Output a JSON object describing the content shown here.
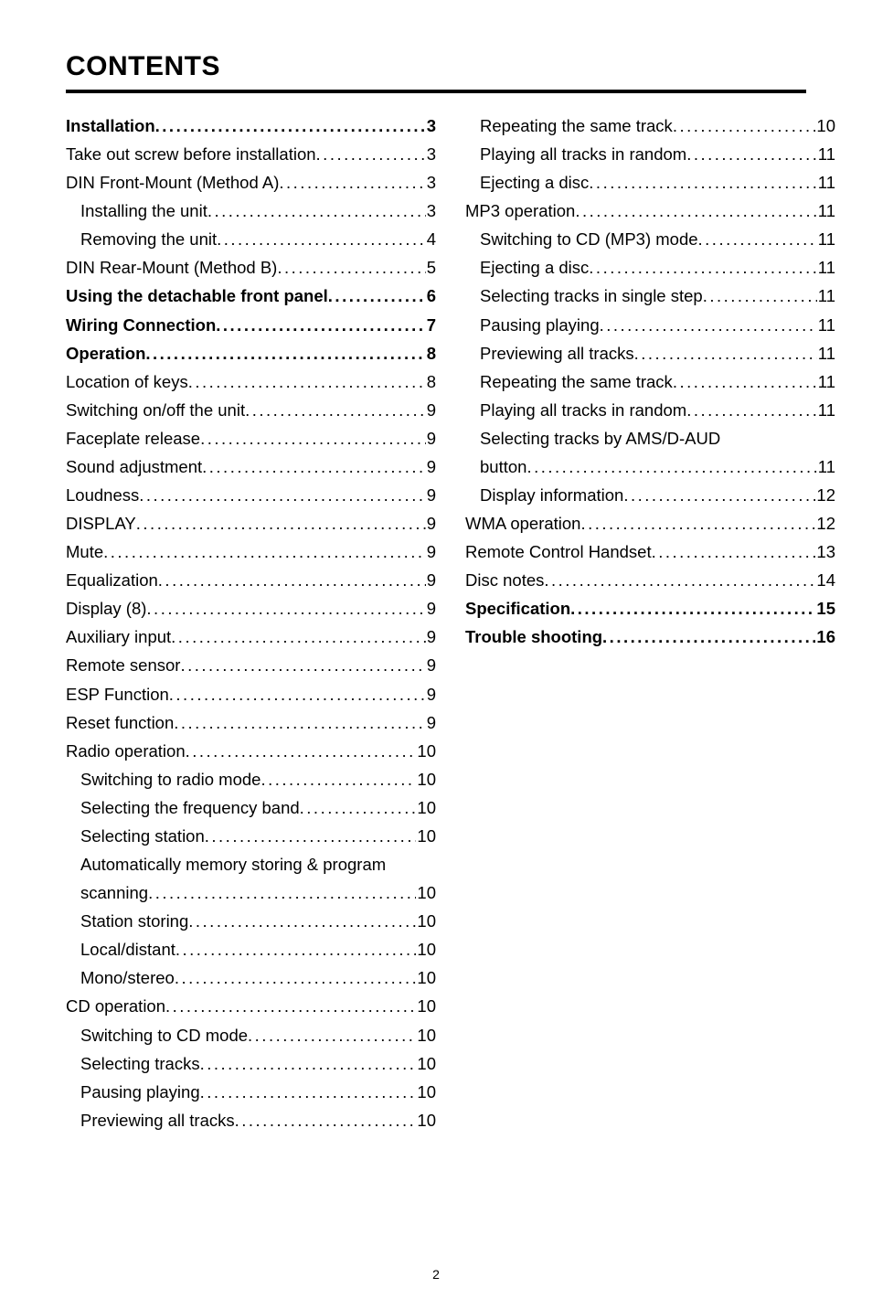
{
  "page_title": "CONTENTS",
  "page_number": "2",
  "columns": {
    "left": [
      {
        "label": "Installation",
        "page": "3",
        "bold": true,
        "indent": 0
      },
      {
        "label": "Take out screw before installation",
        "page": "3",
        "bold": false,
        "indent": 0
      },
      {
        "label": "DIN Front-Mount (Method A)",
        "page": "3",
        "bold": false,
        "indent": 0
      },
      {
        "label": "Installing the unit",
        "page": "3",
        "bold": false,
        "indent": 1
      },
      {
        "label": "Removing the unit",
        "page": "4",
        "bold": false,
        "indent": 1
      },
      {
        "label": "DIN Rear-Mount (Method B)",
        "page": "5",
        "bold": false,
        "indent": 0
      },
      {
        "label": "Using the detachable front panel",
        "page": "6",
        "bold": true,
        "indent": 0
      },
      {
        "label": "Wiring Connection",
        "page": "7",
        "bold": true,
        "indent": 0
      },
      {
        "label": "Operation",
        "page": "8",
        "bold": true,
        "indent": 0
      },
      {
        "label": "Location of keys",
        "page": "8",
        "bold": false,
        "indent": 0
      },
      {
        "label": "Switching on/off the unit",
        "page": "9",
        "bold": false,
        "indent": 0
      },
      {
        "label": "Faceplate release",
        "page": "9",
        "bold": false,
        "indent": 0
      },
      {
        "label": "Sound adjustment",
        "page": "9",
        "bold": false,
        "indent": 0
      },
      {
        "label": "Loudness",
        "page": "9",
        "bold": false,
        "indent": 0
      },
      {
        "label": "DISPLAY",
        "page": "9",
        "bold": false,
        "indent": 0
      },
      {
        "label": "Mute",
        "page": "9",
        "bold": false,
        "indent": 0
      },
      {
        "label": "Equalization",
        "page": "9",
        "bold": false,
        "indent": 0
      },
      {
        "label": "Display (8)",
        "page": "9",
        "bold": false,
        "indent": 0
      },
      {
        "label": "Auxiliary input",
        "page": "9",
        "bold": false,
        "indent": 0
      },
      {
        "label": "Remote sensor",
        "page": "9",
        "bold": false,
        "indent": 0
      },
      {
        "label": "ESP Function",
        "page": "9",
        "bold": false,
        "indent": 0
      },
      {
        "label": "Reset function",
        "page": "9",
        "bold": false,
        "indent": 0
      },
      {
        "label": "Radio operation",
        "page": "10",
        "bold": false,
        "indent": 0
      },
      {
        "label": "Switching to radio mode",
        "page": "10",
        "bold": false,
        "indent": 1
      },
      {
        "label": "Selecting the frequency band",
        "page": "10",
        "bold": false,
        "indent": 1
      },
      {
        "label": "Selecting station",
        "page": "10",
        "bold": false,
        "indent": 1
      },
      {
        "label": "Automatically memory storing & program",
        "page": "",
        "bold": false,
        "indent": 1,
        "no_dots": true
      },
      {
        "label": "scanning",
        "page": "10",
        "bold": false,
        "indent": 1
      },
      {
        "label": "Station storing",
        "page": "10",
        "bold": false,
        "indent": 1
      },
      {
        "label": "Local/distant",
        "page": "10",
        "bold": false,
        "indent": 1
      },
      {
        "label": "Mono/stereo",
        "page": "10",
        "bold": false,
        "indent": 1
      },
      {
        "label": "CD operation",
        "page": "10",
        "bold": false,
        "indent": 0
      },
      {
        "label": "Switching to CD mode",
        "page": "10",
        "bold": false,
        "indent": 1
      },
      {
        "label": "Selecting tracks",
        "page": "10",
        "bold": false,
        "indent": 1
      },
      {
        "label": "Pausing playing",
        "page": "10",
        "bold": false,
        "indent": 1
      },
      {
        "label": "Previewing all tracks",
        "page": "10",
        "bold": false,
        "indent": 1
      }
    ],
    "right": [
      {
        "label": "Repeating the same track",
        "page": "10",
        "bold": false,
        "indent": 1
      },
      {
        "label": "Playing all tracks in random",
        "page": "11",
        "bold": false,
        "indent": 1
      },
      {
        "label": "Ejecting a disc",
        "page": "11",
        "bold": false,
        "indent": 1
      },
      {
        "label": "MP3 operation",
        "page": "11",
        "bold": false,
        "indent": 0
      },
      {
        "label": "Switching to CD (MP3) mode",
        "page": " 11",
        "bold": false,
        "indent": 1
      },
      {
        "label": "Ejecting a disc",
        "page": " 11",
        "bold": false,
        "indent": 1
      },
      {
        "label": "Selecting tracks in single step",
        "page": " 11",
        "bold": false,
        "indent": 1
      },
      {
        "label": "Pausing playing",
        "page": " 11",
        "bold": false,
        "indent": 1
      },
      {
        "label": "Previewing all tracks",
        "page": " 11",
        "bold": false,
        "indent": 1
      },
      {
        "label": "Repeating the same track",
        "page": " 11",
        "bold": false,
        "indent": 1
      },
      {
        "label": "Playing all tracks in random",
        "page": " 11",
        "bold": false,
        "indent": 1
      },
      {
        "label": "Selecting tracks by AMS/D-AUD",
        "page": "",
        "bold": false,
        "indent": 1,
        "no_dots": true
      },
      {
        "label": "button",
        "page": "11",
        "bold": false,
        "indent": 1
      },
      {
        "label": "Display information",
        "page": " 12",
        "bold": false,
        "indent": 1
      },
      {
        "label": "WMA operation",
        "page": "12",
        "bold": false,
        "indent": 0
      },
      {
        "label": "Remote Control Handset",
        "page": "13",
        "bold": false,
        "indent": 0
      },
      {
        "label": "Disc notes",
        "page": "14",
        "bold": false,
        "indent": 0
      },
      {
        "label": "Specification",
        "page": " 15",
        "bold": true,
        "indent": 0
      },
      {
        "label": "Trouble shooting",
        "page": " 16",
        "bold": true,
        "indent": 0
      }
    ]
  }
}
